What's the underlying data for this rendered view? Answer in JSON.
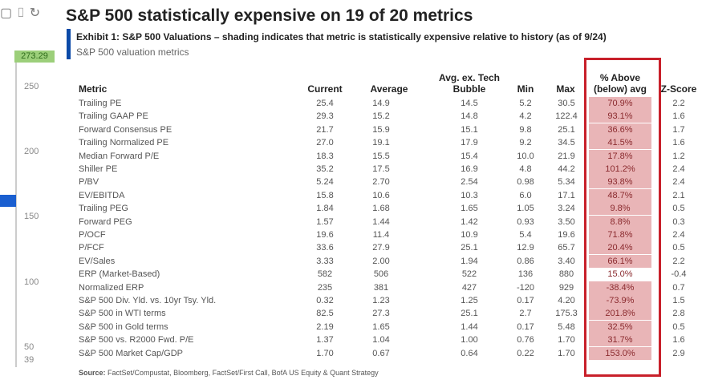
{
  "toolbar": {
    "icons": [
      "square-icon",
      "crop-icon",
      "refresh-icon"
    ]
  },
  "price_axis": {
    "current": "273.29",
    "ticks": [
      "250",
      "200",
      "150",
      "100",
      "50",
      "39"
    ]
  },
  "title": "S&P 500 statistically expensive on 19 of 20 metrics",
  "exhibit": "Exhibit 1: S&P 500 Valuations – shading indicates that metric is statistically expensive relative to history (as of 9/24)",
  "subtitle": "S&P 500 valuation metrics",
  "headers": {
    "metric": "Metric",
    "current": "Current",
    "average": "Average",
    "avg_ex_tech_1": "Avg. ex. Tech",
    "avg_ex_tech_2": "Bubble",
    "min": "Min",
    "max": "Max",
    "pct_1": "% Above",
    "pct_2": "(below) avg",
    "z": "Z-Score"
  },
  "colors": {
    "shade": "#e9b5b7",
    "box": "#c8202a",
    "accent": "#0b4aa8"
  },
  "rows": [
    [
      "Trailing PE",
      "25.4",
      "14.9",
      "14.5",
      "5.2",
      "30.5",
      "70.9%",
      "2.2",
      true
    ],
    [
      "Trailing GAAP PE",
      "29.3",
      "15.2",
      "14.8",
      "4.2",
      "122.4",
      "93.1%",
      "1.6",
      true
    ],
    [
      "Forward Consensus PE",
      "21.7",
      "15.9",
      "15.1",
      "9.8",
      "25.1",
      "36.6%",
      "1.7",
      true
    ],
    [
      "Trailing Normalized PE",
      "27.0",
      "19.1",
      "17.9",
      "9.2",
      "34.5",
      "41.5%",
      "1.6",
      true
    ],
    [
      "Median Forward P/E",
      "18.3",
      "15.5",
      "15.4",
      "10.0",
      "21.9",
      "17.8%",
      "1.2",
      true
    ],
    [
      "Shiller PE",
      "35.2",
      "17.5",
      "16.9",
      "4.8",
      "44.2",
      "101.2%",
      "2.4",
      true
    ],
    [
      "P/BV",
      "5.24",
      "2.70",
      "2.54",
      "0.98",
      "5.34",
      "93.8%",
      "2.4",
      true
    ],
    [
      "EV/EBITDA",
      "15.8",
      "10.6",
      "10.3",
      "6.0",
      "17.1",
      "48.7%",
      "2.1",
      true
    ],
    [
      "Trailing PEG",
      "1.84",
      "1.68",
      "1.65",
      "1.05",
      "3.24",
      "9.8%",
      "0.5",
      true
    ],
    [
      "Forward PEG",
      "1.57",
      "1.44",
      "1.42",
      "0.93",
      "3.50",
      "8.8%",
      "0.3",
      true
    ],
    [
      "P/OCF",
      "19.6",
      "11.4",
      "10.9",
      "5.4",
      "19.6",
      "71.8%",
      "2.4",
      true
    ],
    [
      "P/FCF",
      "33.6",
      "27.9",
      "25.1",
      "12.9",
      "65.7",
      "20.4%",
      "0.5",
      true
    ],
    [
      "EV/Sales",
      "3.33",
      "2.00",
      "1.94",
      "0.86",
      "3.40",
      "66.1%",
      "2.2",
      true
    ],
    [
      "ERP (Market-Based)",
      "582",
      "506",
      "522",
      "136",
      "880",
      "15.0%",
      "-0.4",
      false
    ],
    [
      "Normalized ERP",
      "235",
      "381",
      "427",
      "-120",
      "929",
      "-38.4%",
      "0.7",
      true
    ],
    [
      "S&P 500 Div. Yld. vs. 10yr Tsy. Yld.",
      "0.32",
      "1.23",
      "1.25",
      "0.17",
      "4.20",
      "-73.9%",
      "1.5",
      true
    ],
    [
      "S&P 500 in WTI terms",
      "82.5",
      "27.3",
      "25.1",
      "2.7",
      "175.3",
      "201.8%",
      "2.8",
      true
    ],
    [
      "S&P 500 in Gold terms",
      "2.19",
      "1.65",
      "1.44",
      "0.17",
      "5.48",
      "32.5%",
      "0.5",
      true
    ],
    [
      "S&P 500 vs. R2000 Fwd. P/E",
      "1.37",
      "1.04",
      "1.00",
      "0.76",
      "1.70",
      "31.7%",
      "1.6",
      true
    ],
    [
      "S&P 500 Market Cap/GDP",
      "1.70",
      "0.67",
      "0.64",
      "0.22",
      "1.70",
      "153.0%",
      "2.9",
      true
    ]
  ],
  "source_label": "Source:",
  "source": "FactSet/Compustat, Bloomberg, FactSet/First Call, BofA US Equity & Quant Strategy"
}
